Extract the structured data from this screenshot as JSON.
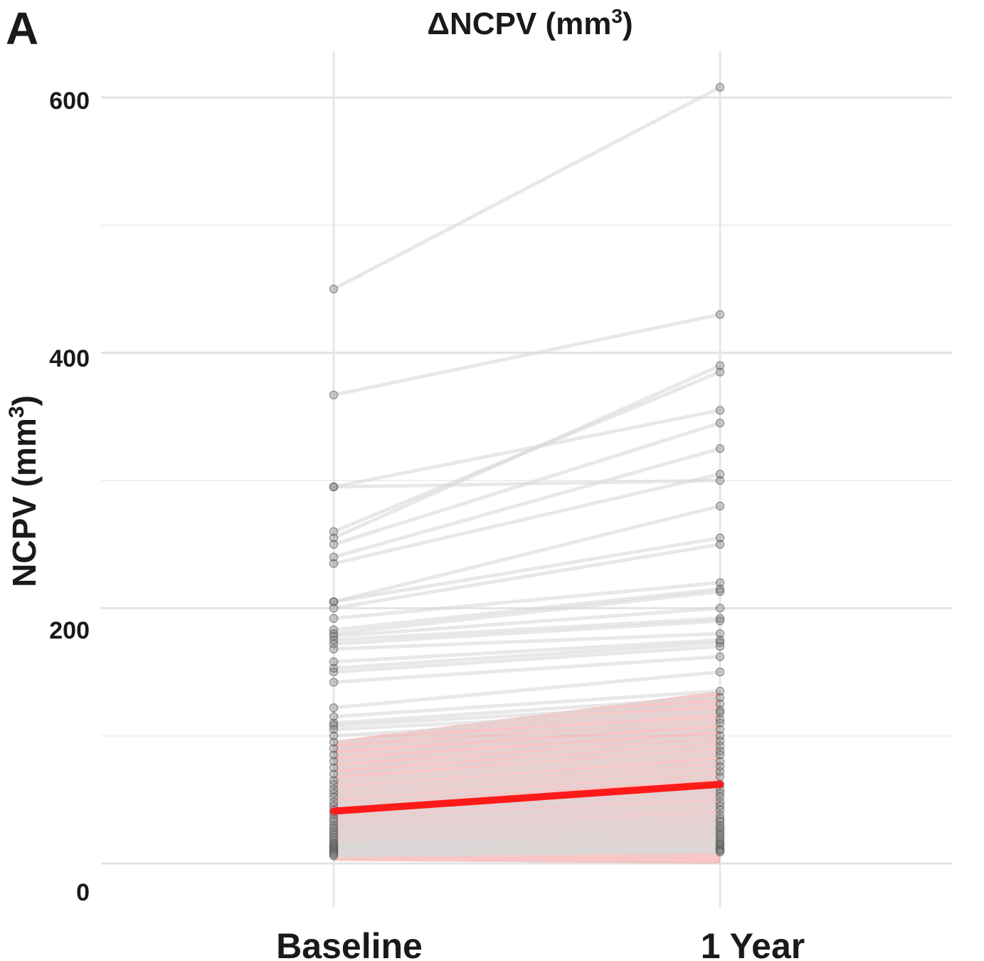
{
  "panel_label": "A",
  "chart_data": {
    "type": "line",
    "title": "ΔNCPV (mm³)",
    "title_parts": {
      "base": "ΔNCPV (mm",
      "sup": "3",
      "end": ")"
    },
    "ylabel": "NCPV (mm³)",
    "ylabel_parts": {
      "base": "NCPV (mm",
      "sup": "3",
      "end": ")"
    },
    "xlabel": "",
    "categories": [
      "Baseline",
      "1 Year"
    ],
    "y_ticks": [
      0,
      200,
      400,
      600
    ],
    "ylim": [
      0,
      620
    ],
    "grid": true,
    "line_color": "#d9d9d9",
    "point_color": "#7f7f7f",
    "mean_color": "#ff1a1a",
    "band_color": "#f08080",
    "subjects": [
      [
        450,
        608
      ],
      [
        367,
        430
      ],
      [
        295,
        300
      ],
      [
        295,
        355
      ],
      [
        260,
        385
      ],
      [
        255,
        390
      ],
      [
        250,
        345
      ],
      [
        240,
        325
      ],
      [
        235,
        305
      ],
      [
        205,
        280
      ],
      [
        205,
        255
      ],
      [
        200,
        250
      ],
      [
        192,
        220
      ],
      [
        183,
        215
      ],
      [
        180,
        213
      ],
      [
        178,
        200
      ],
      [
        175,
        192
      ],
      [
        172,
        190
      ],
      [
        168,
        180
      ],
      [
        158,
        175
      ],
      [
        153,
        173
      ],
      [
        150,
        170
      ],
      [
        142,
        162
      ],
      [
        122,
        150
      ],
      [
        115,
        135
      ],
      [
        110,
        130
      ],
      [
        108,
        125
      ],
      [
        105,
        120
      ],
      [
        100,
        118
      ],
      [
        95,
        113
      ],
      [
        90,
        110
      ],
      [
        85,
        105
      ],
      [
        80,
        100
      ],
      [
        75,
        96
      ],
      [
        70,
        92
      ],
      [
        65,
        88
      ],
      [
        62,
        85
      ],
      [
        58,
        80
      ],
      [
        55,
        76
      ],
      [
        52,
        72
      ],
      [
        48,
        68
      ],
      [
        45,
        62
      ],
      [
        42,
        58
      ],
      [
        40,
        55
      ],
      [
        38,
        52
      ],
      [
        35,
        48
      ],
      [
        33,
        45
      ],
      [
        30,
        42
      ],
      [
        28,
        38
      ],
      [
        26,
        35
      ],
      [
        24,
        33
      ],
      [
        22,
        30
      ],
      [
        20,
        28
      ],
      [
        18,
        26
      ],
      [
        16,
        24
      ],
      [
        15,
        22
      ],
      [
        14,
        20
      ],
      [
        13,
        18
      ],
      [
        12,
        16
      ],
      [
        11,
        15
      ],
      [
        10,
        14
      ],
      [
        9,
        12
      ],
      [
        8,
        11
      ],
      [
        7,
        10
      ],
      [
        6,
        9
      ]
    ],
    "mean": [
      41,
      62
    ],
    "band": {
      "lower": [
        2,
        0
      ],
      "upper": [
        96,
        135
      ]
    }
  }
}
